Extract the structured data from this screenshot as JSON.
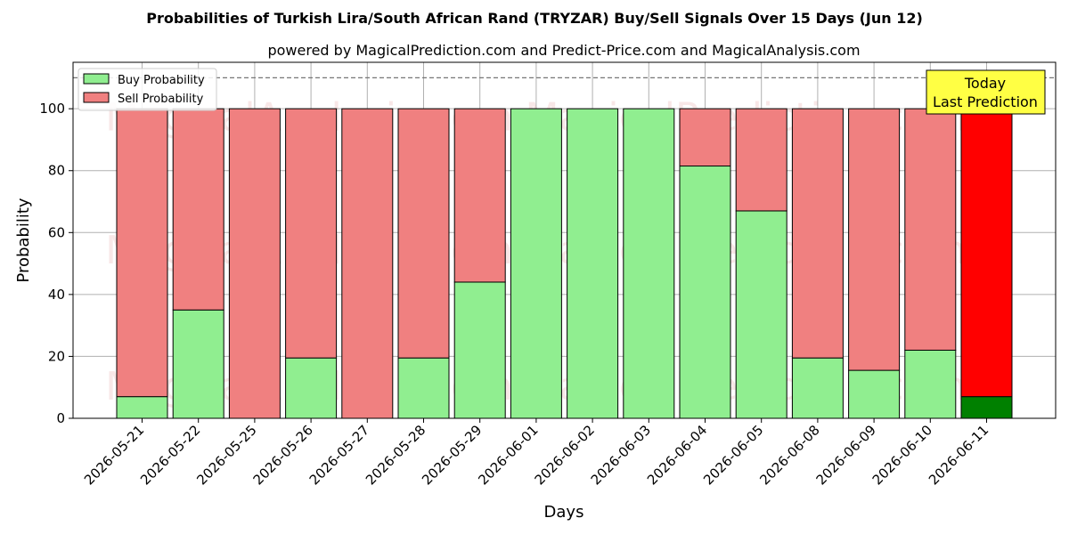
{
  "chart_data": {
    "type": "bar",
    "stacked": true,
    "title": "Probabilities of Turkish Lira/South African Rand (TRYZAR) Buy/Sell Signals Over 15 Days (Jun 12)",
    "subtitle": "powered by MagicalPrediction.com and Predict-Price.com and MagicalAnalysis.com",
    "xlabel": "Days",
    "ylabel": "Probability",
    "ylim": [
      0,
      115
    ],
    "yticks": [
      0,
      20,
      40,
      60,
      80,
      100
    ],
    "grid": true,
    "legend_position": "top-left",
    "reference_line": 110,
    "categories": [
      "2026-05-21",
      "2026-05-22",
      "2026-05-25",
      "2026-05-26",
      "2026-05-27",
      "2026-05-28",
      "2026-05-29",
      "2026-06-01",
      "2026-06-02",
      "2026-06-03",
      "2026-06-04",
      "2026-06-05",
      "2026-06-08",
      "2026-06-09",
      "2026-06-10",
      "2026-06-11"
    ],
    "series": [
      {
        "name": "Buy Probability",
        "color": "#90ee90",
        "values": [
          7,
          35,
          0,
          19.5,
          0,
          19.5,
          44,
          100,
          100,
          100,
          81.5,
          67,
          19.5,
          15.5,
          22,
          7
        ]
      },
      {
        "name": "Sell Probability",
        "color": "#f08080",
        "values": [
          93,
          65,
          100,
          80.5,
          100,
          80.5,
          56,
          0,
          0,
          0,
          18.5,
          33,
          80.5,
          84.5,
          78,
          93
        ]
      }
    ],
    "highlight": {
      "index": 15,
      "buy_color": "#008000",
      "sell_color": "#ff0000"
    },
    "annotation": {
      "line1": "Today",
      "line2": "Last Prediction",
      "color": "#ffff44"
    },
    "watermarks": [
      "MagicalAnalysis.com",
      "MagicalPrediction.com"
    ]
  }
}
